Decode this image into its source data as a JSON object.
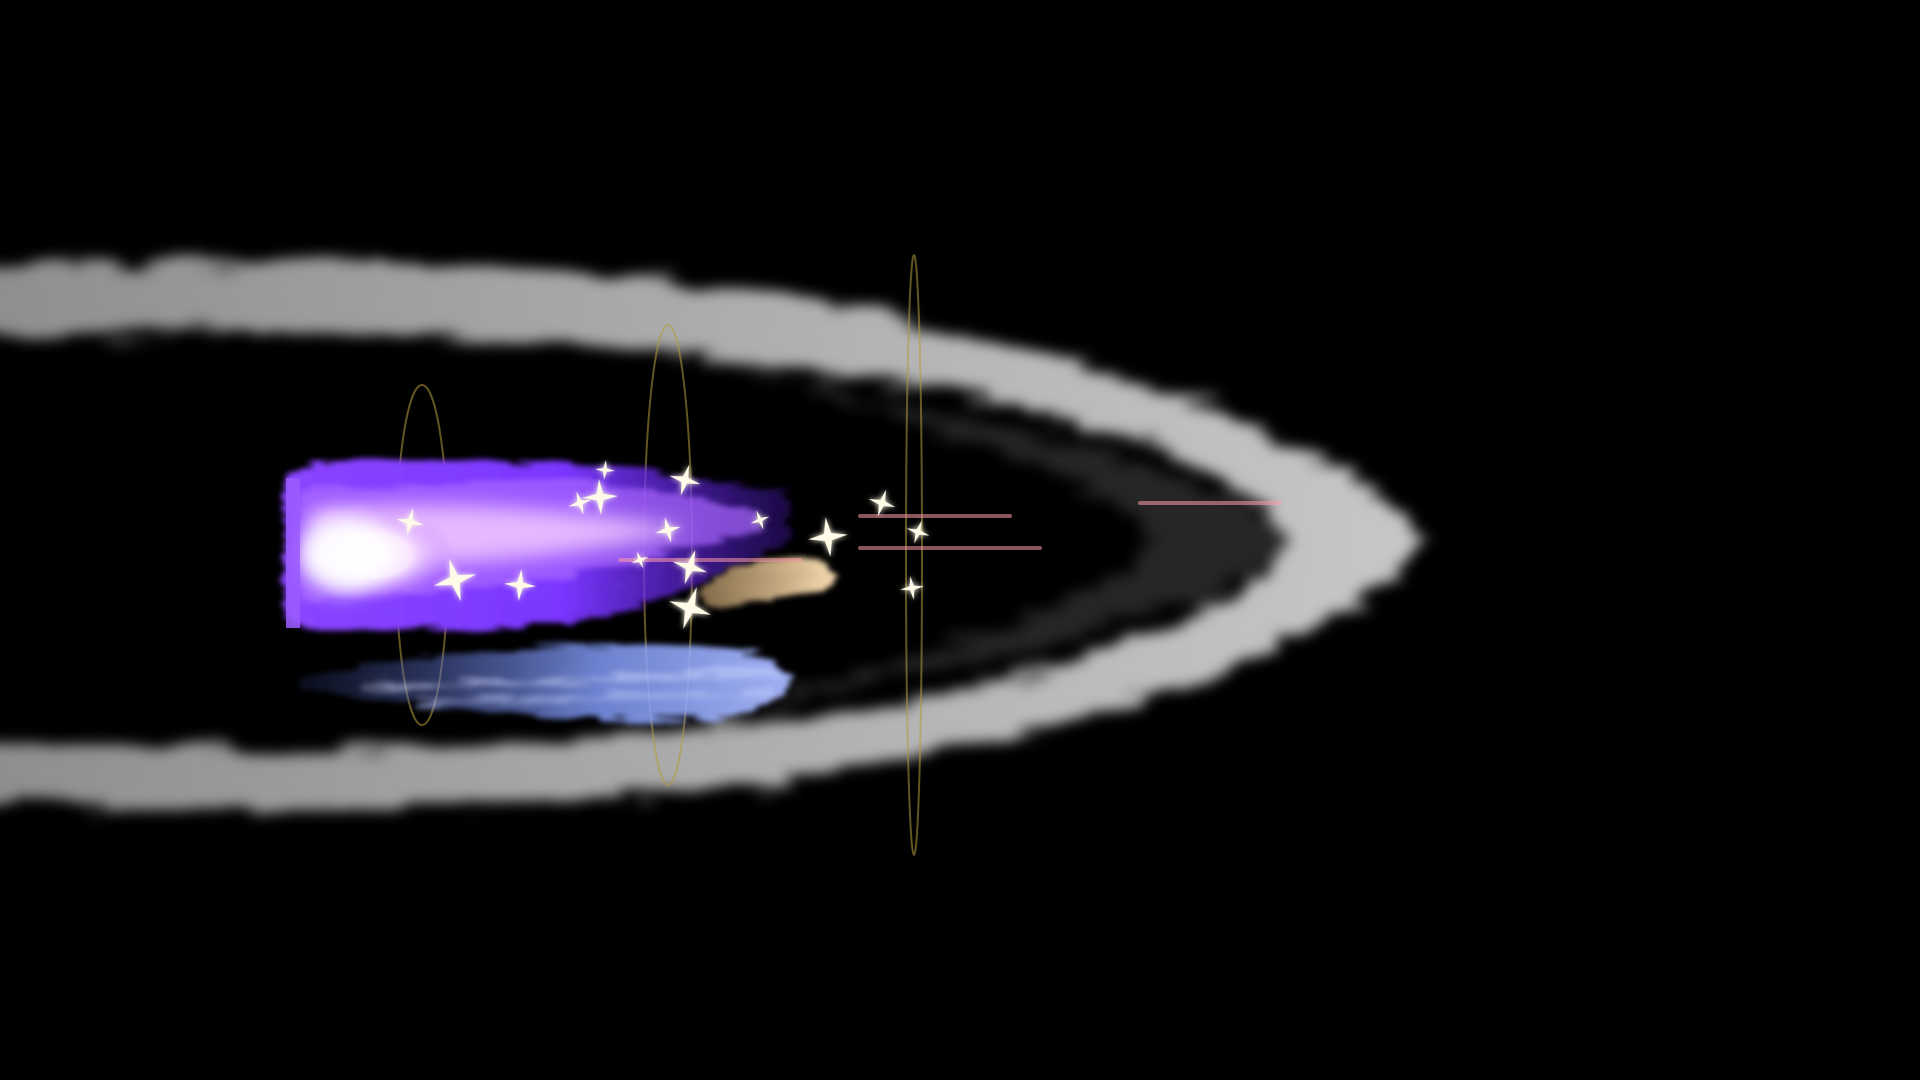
{
  "scene": {
    "background_color": "#000000",
    "effect": "magic-projectile",
    "direction": "right"
  },
  "palette": {
    "smoke": "#bdbdbd",
    "core_glow": "#fff2fb",
    "flame_purple": "#7c3cff",
    "flame_violet": "#9e52ff",
    "exhaust_blue": "#8fa6ff",
    "ember_tan": "#f1cfa0",
    "sparkle": "#fffbe8",
    "ring_gold": "#b49a3c",
    "streak_pink": "#ff9aa8"
  },
  "layers": {
    "shockwave_trail": "smoke-cone-icon",
    "speed_rings": "ring-icon",
    "flame_body": "flame-icon",
    "exhaust": "exhaust-streak-icon",
    "ember": "ember-icon",
    "sparkles": "sparkle-icon",
    "speed_lines": "speed-line-icon"
  },
  "counts": {
    "sparkles": 16,
    "speed_rings": 3,
    "speed_lines": 4
  }
}
